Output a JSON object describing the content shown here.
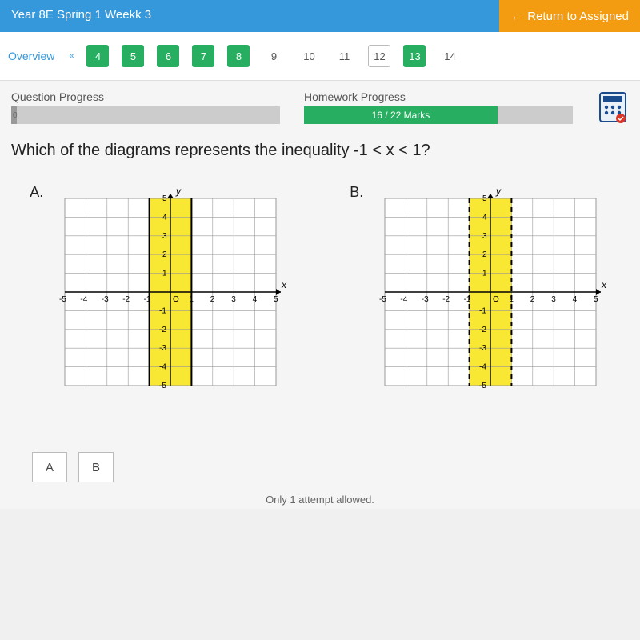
{
  "header": {
    "title": "Year 8E Spring 1 Weekk 3",
    "return_label": "Return to Assigned"
  },
  "nav": {
    "overview_label": "Overview",
    "chevron": "«",
    "items": [
      {
        "label": "4",
        "style": "green"
      },
      {
        "label": "5",
        "style": "green"
      },
      {
        "label": "6",
        "style": "green"
      },
      {
        "label": "7",
        "style": "green"
      },
      {
        "label": "8",
        "style": "green"
      },
      {
        "label": "9",
        "style": "plain"
      },
      {
        "label": "10",
        "style": "plain"
      },
      {
        "label": "11",
        "style": "plain"
      },
      {
        "label": "12",
        "style": "current"
      },
      {
        "label": "13",
        "style": "green"
      },
      {
        "label": "14",
        "style": "plain"
      }
    ]
  },
  "question_progress": {
    "label": "Question Progress",
    "value": "0"
  },
  "homework_progress": {
    "label": "Homework Progress",
    "value": "16 / 22 Marks",
    "fill_percent": 72
  },
  "question": "Which of the diagrams represents the inequality -1 < x < 1?",
  "diagram_a": {
    "label": "A.",
    "type": "coordinate-grid",
    "xlim": [
      -5,
      5
    ],
    "ylim": [
      -5,
      5
    ],
    "x_ticks": [
      -5,
      -4,
      -3,
      -2,
      -1,
      0,
      1,
      2,
      3,
      4,
      5
    ],
    "y_ticks": [
      -5,
      -4,
      -3,
      -2,
      -1,
      0,
      1,
      2,
      3,
      4,
      5
    ],
    "y_label": "y",
    "x_label": "x",
    "shaded_region": {
      "x_from": -1,
      "x_to": 1,
      "color": "#f9e833"
    },
    "boundary_lines": {
      "style": "solid",
      "color": "#000000",
      "width": 2
    },
    "grid_color": "#999999",
    "axis_color": "#000000",
    "background": "#ffffff"
  },
  "diagram_b": {
    "label": "B.",
    "type": "coordinate-grid",
    "xlim": [
      -5,
      5
    ],
    "ylim": [
      -5,
      5
    ],
    "x_ticks": [
      -5,
      -4,
      -3,
      -2,
      -1,
      0,
      1,
      2,
      3,
      4,
      5
    ],
    "y_ticks": [
      -5,
      -4,
      -3,
      -2,
      -1,
      0,
      1,
      2,
      3,
      4,
      5
    ],
    "y_label": "y",
    "x_label": "x",
    "shaded_region": {
      "x_from": -1,
      "x_to": 1,
      "color": "#f9e833"
    },
    "boundary_lines": {
      "style": "dashed",
      "color": "#000000",
      "width": 2,
      "dash": "6,5"
    },
    "grid_color": "#999999",
    "axis_color": "#000000",
    "background": "#ffffff"
  },
  "answers": {
    "a": "A",
    "b": "B"
  },
  "footer": "Only 1 attempt allowed.",
  "calc_colors": {
    "border": "#1a4b8c",
    "bg": "#eaf0f8",
    "btn": "#1a4b8c",
    "red": "#d9362a"
  }
}
